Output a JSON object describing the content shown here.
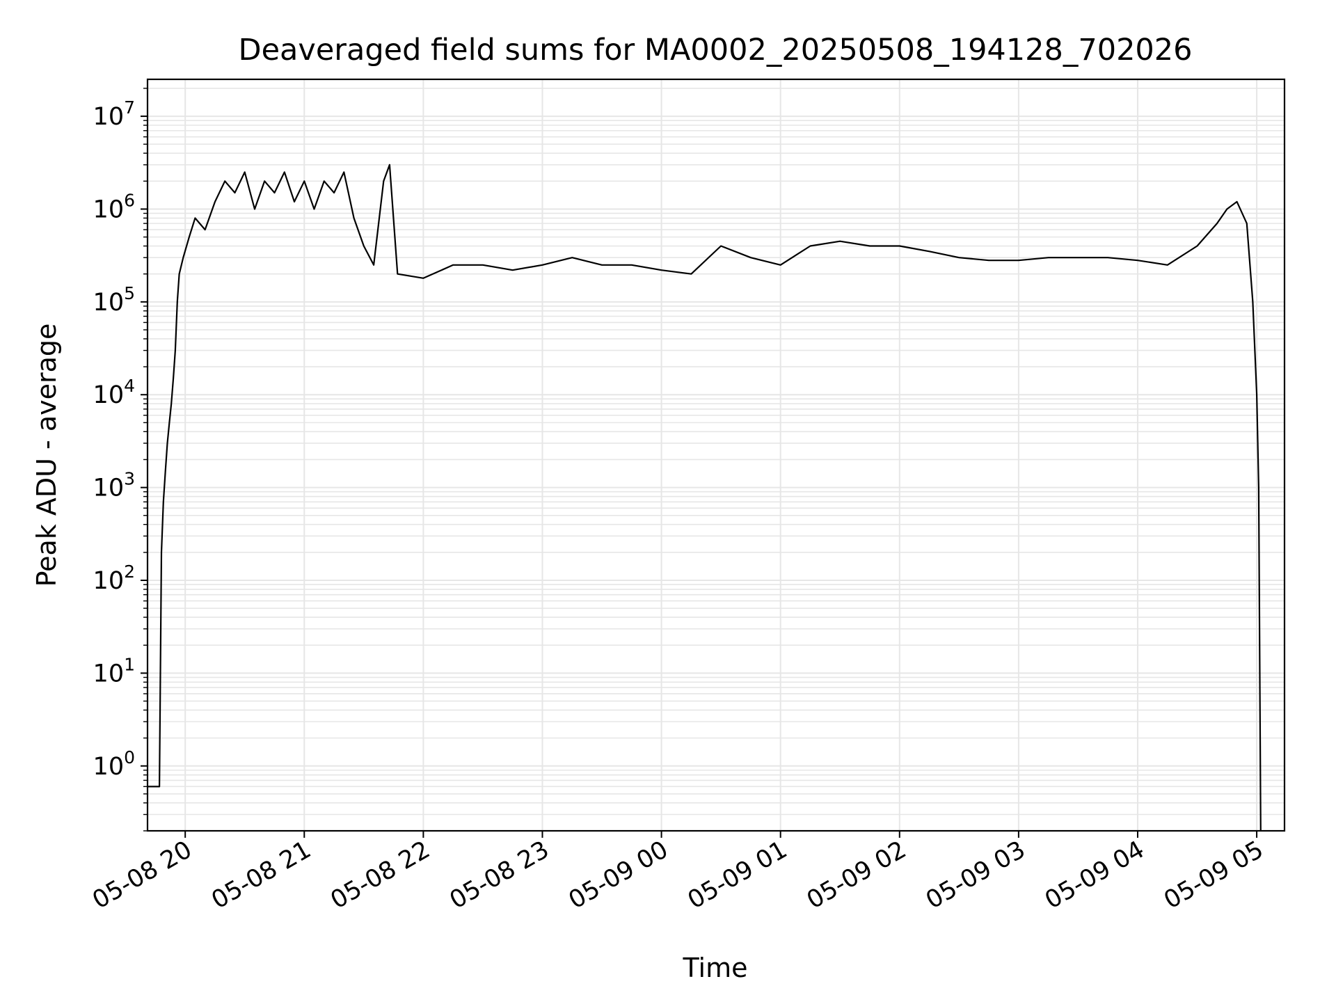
{
  "chart_data": {
    "type": "line",
    "title": "Deaveraged field sums for MA0002_20250508_194128_702026",
    "xlabel": "Time",
    "ylabel": "Peak ADU - average",
    "y_scale": "log",
    "grid": true,
    "line_color": "#000000",
    "grid_color": "#e6e6e6",
    "x_range": [
      "2025-05-08 19:41",
      "2025-05-09 05:14"
    ],
    "y_range": [
      0.2,
      25000000
    ],
    "x_ticks": [
      {
        "t": "2025-05-08 20:00",
        "label": "05-08 20"
      },
      {
        "t": "2025-05-08 21:00",
        "label": "05-08 21"
      },
      {
        "t": "2025-05-08 22:00",
        "label": "05-08 22"
      },
      {
        "t": "2025-05-08 23:00",
        "label": "05-08 23"
      },
      {
        "t": "2025-05-09 00:00",
        "label": "05-09 00"
      },
      {
        "t": "2025-05-09 01:00",
        "label": "05-09 01"
      },
      {
        "t": "2025-05-09 02:00",
        "label": "05-09 02"
      },
      {
        "t": "2025-05-09 03:00",
        "label": "05-09 03"
      },
      {
        "t": "2025-05-09 04:00",
        "label": "05-09 04"
      },
      {
        "t": "2025-05-09 05:00",
        "label": "05-09 05"
      }
    ],
    "y_ticks": [
      {
        "value": 1,
        "base": "10",
        "exp": "0"
      },
      {
        "value": 10,
        "base": "10",
        "exp": "1"
      },
      {
        "value": 100,
        "base": "10",
        "exp": "2"
      },
      {
        "value": 1000,
        "base": "10",
        "exp": "3"
      },
      {
        "value": 10000,
        "base": "10",
        "exp": "4"
      },
      {
        "value": 100000,
        "base": "10",
        "exp": "5"
      },
      {
        "value": 1000000,
        "base": "10",
        "exp": "6"
      },
      {
        "value": 10000000,
        "base": "10",
        "exp": "7"
      }
    ],
    "series": [
      {
        "points": [
          [
            "2025-05-08 19:41",
            0.6
          ],
          [
            "2025-05-08 19:47",
            0.6
          ],
          [
            "2025-05-08 19:48",
            200
          ],
          [
            "2025-05-08 19:49",
            700
          ],
          [
            "2025-05-08 19:50",
            1500
          ],
          [
            "2025-05-08 19:51",
            3000
          ],
          [
            "2025-05-08 19:52",
            5000
          ],
          [
            "2025-05-08 19:53",
            8000
          ],
          [
            "2025-05-08 19:54",
            15000
          ],
          [
            "2025-05-08 19:55",
            30000
          ],
          [
            "2025-05-08 19:56",
            100000
          ],
          [
            "2025-05-08 19:57",
            200000
          ],
          [
            "2025-05-08 19:59",
            300000
          ],
          [
            "2025-05-08 20:02",
            500000
          ],
          [
            "2025-05-08 20:05",
            800000
          ],
          [
            "2025-05-08 20:10",
            600000
          ],
          [
            "2025-05-08 20:15",
            1200000
          ],
          [
            "2025-05-08 20:20",
            2000000
          ],
          [
            "2025-05-08 20:25",
            1500000
          ],
          [
            "2025-05-08 20:30",
            2500000
          ],
          [
            "2025-05-08 20:35",
            1000000
          ],
          [
            "2025-05-08 20:40",
            2000000
          ],
          [
            "2025-05-08 20:45",
            1500000
          ],
          [
            "2025-05-08 20:50",
            2500000
          ],
          [
            "2025-05-08 20:55",
            1200000
          ],
          [
            "2025-05-08 21:00",
            2000000
          ],
          [
            "2025-05-08 21:05",
            1000000
          ],
          [
            "2025-05-08 21:10",
            2000000
          ],
          [
            "2025-05-08 21:15",
            1500000
          ],
          [
            "2025-05-08 21:20",
            2500000
          ],
          [
            "2025-05-08 21:25",
            800000
          ],
          [
            "2025-05-08 21:30",
            400000
          ],
          [
            "2025-05-08 21:35",
            250000
          ],
          [
            "2025-05-08 21:40",
            2000000
          ],
          [
            "2025-05-08 21:43",
            3000000
          ],
          [
            "2025-05-08 21:47",
            200000
          ],
          [
            "2025-05-08 22:00",
            180000
          ],
          [
            "2025-05-08 22:15",
            250000
          ],
          [
            "2025-05-08 22:30",
            250000
          ],
          [
            "2025-05-08 22:45",
            220000
          ],
          [
            "2025-05-08 23:00",
            250000
          ],
          [
            "2025-05-08 23:15",
            300000
          ],
          [
            "2025-05-08 23:30",
            250000
          ],
          [
            "2025-05-08 23:45",
            250000
          ],
          [
            "2025-05-09 00:00",
            220000
          ],
          [
            "2025-05-09 00:15",
            200000
          ],
          [
            "2025-05-09 00:30",
            400000
          ],
          [
            "2025-05-09 00:45",
            300000
          ],
          [
            "2025-05-09 01:00",
            250000
          ],
          [
            "2025-05-09 01:15",
            400000
          ],
          [
            "2025-05-09 01:30",
            450000
          ],
          [
            "2025-05-09 01:45",
            400000
          ],
          [
            "2025-05-09 02:00",
            400000
          ],
          [
            "2025-05-09 02:15",
            350000
          ],
          [
            "2025-05-09 02:30",
            300000
          ],
          [
            "2025-05-09 02:45",
            280000
          ],
          [
            "2025-05-09 03:00",
            280000
          ],
          [
            "2025-05-09 03:15",
            300000
          ],
          [
            "2025-05-09 03:30",
            300000
          ],
          [
            "2025-05-09 03:45",
            300000
          ],
          [
            "2025-05-09 04:00",
            280000
          ],
          [
            "2025-05-09 04:15",
            250000
          ],
          [
            "2025-05-09 04:30",
            400000
          ],
          [
            "2025-05-09 04:40",
            700000
          ],
          [
            "2025-05-09 04:45",
            1000000
          ],
          [
            "2025-05-09 04:50",
            1200000
          ],
          [
            "2025-05-09 04:55",
            700000
          ],
          [
            "2025-05-09 04:58",
            100000
          ],
          [
            "2025-05-09 05:00",
            10000
          ],
          [
            "2025-05-09 05:01",
            1000
          ],
          [
            "2025-05-09 05:02",
            0.2
          ]
        ]
      }
    ]
  }
}
